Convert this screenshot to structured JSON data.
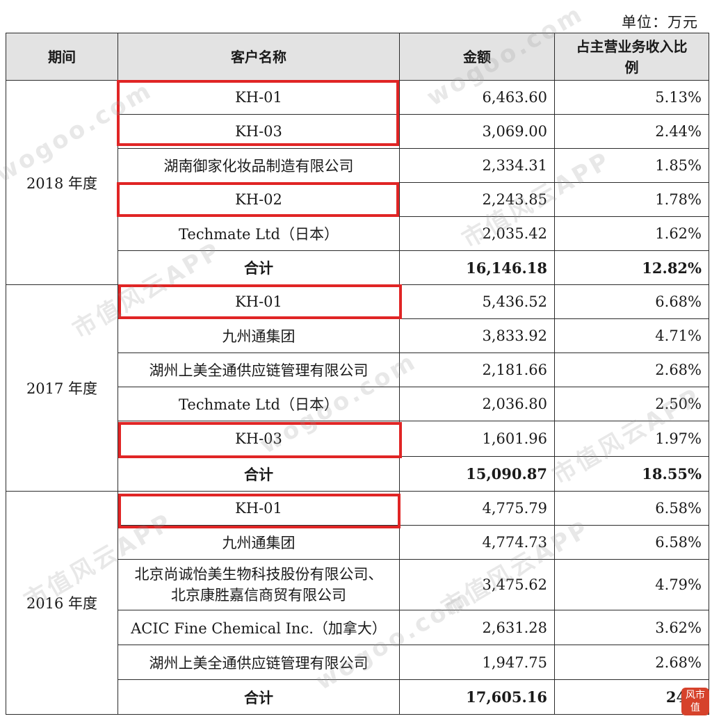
{
  "unit_label": "单位：万元",
  "headers": {
    "period": "期间",
    "customer": "客户名称",
    "amount": "金额",
    "ratio": "占主营业务收入比例"
  },
  "groups": [
    {
      "period": "2018 年度",
      "rows": [
        {
          "customer": "KH-01",
          "amount": "6,463.60",
          "ratio": "5.13%"
        },
        {
          "customer": "KH-03",
          "amount": "3,069.00",
          "ratio": "2.44%"
        },
        {
          "customer": "湖南御家化妆品制造有限公司",
          "amount": "2,334.31",
          "ratio": "1.85%"
        },
        {
          "customer": "KH-02",
          "amount": "2,243.85",
          "ratio": "1.78%"
        },
        {
          "customer": "Techmate Ltd（日本）",
          "amount": "2,035.42",
          "ratio": "1.62%"
        }
      ],
      "total": {
        "label": "合计",
        "amount": "16,146.18",
        "ratio": "12.82%"
      }
    },
    {
      "period": "2017 年度",
      "rows": [
        {
          "customer": "KH-01",
          "amount": "5,436.52",
          "ratio": "6.68%"
        },
        {
          "customer": "九州通集团",
          "amount": "3,833.92",
          "ratio": "4.71%"
        },
        {
          "customer": "湖州上美全通供应链管理有限公司",
          "amount": "2,181.66",
          "ratio": "2.68%"
        },
        {
          "customer": "Techmate Ltd（日本）",
          "amount": "2,036.80",
          "ratio": "2.50%"
        },
        {
          "customer": "KH-03",
          "amount": "1,601.96",
          "ratio": "1.97%"
        }
      ],
      "total": {
        "label": "合计",
        "amount": "15,090.87",
        "ratio": "18.55%"
      }
    },
    {
      "period": "2016 年度",
      "rows": [
        {
          "customer": "KH-01",
          "amount": "4,775.79",
          "ratio": "6.58%"
        },
        {
          "customer": "九州通集团",
          "amount": "4,774.73",
          "ratio": "6.58%"
        },
        {
          "customer": "北京尚诚怡美生物科技股份有限公司、北京康胜嘉信商贸有限公司",
          "amount": "3,475.62",
          "ratio": "4.79%"
        },
        {
          "customer": "ACIC Fine Chemical Inc.（加拿大）",
          "amount": "2,631.28",
          "ratio": "3.62%"
        },
        {
          "customer": "湖州上美全通供应链管理有限公司",
          "amount": "1,947.75",
          "ratio": "2.68%"
        }
      ],
      "total": {
        "label": "合计",
        "amount": "17,605.16",
        "ratio": "24.2"
      }
    }
  ],
  "highlight_color": "#e02525",
  "watermark": {
    "text_cn": "市值风云APP",
    "text_url": "wogoo.com"
  },
  "corner_logo": "风市值"
}
